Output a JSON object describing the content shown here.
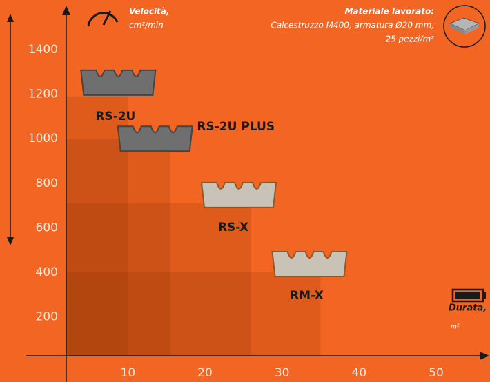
{
  "chart_data": {
    "type": "step-area",
    "y_title": "Velocità,",
    "y_unit": "cm²/min",
    "x_title": "Durata,",
    "x_unit": "m²",
    "material_title": "Materiale lavorato:",
    "material_lines": [
      "Calcestruzzo M400, armatura Ø20 mm,",
      "25 pezzi/m²"
    ],
    "categories": [
      "RS-2U",
      "RS-2U PLUS",
      "RS-X",
      "RM-X"
    ],
    "x": [
      10,
      15.5,
      26,
      35
    ],
    "values": [
      1190,
      1000,
      710,
      400
    ],
    "color": "#7a2a00",
    "xlim": [
      2,
      56
    ],
    "ylim": [
      25,
      1580
    ],
    "xticks": [
      10,
      20,
      30,
      40,
      50
    ],
    "yticks": [
      200,
      400,
      600,
      800,
      1000,
      1200,
      1400
    ]
  }
}
